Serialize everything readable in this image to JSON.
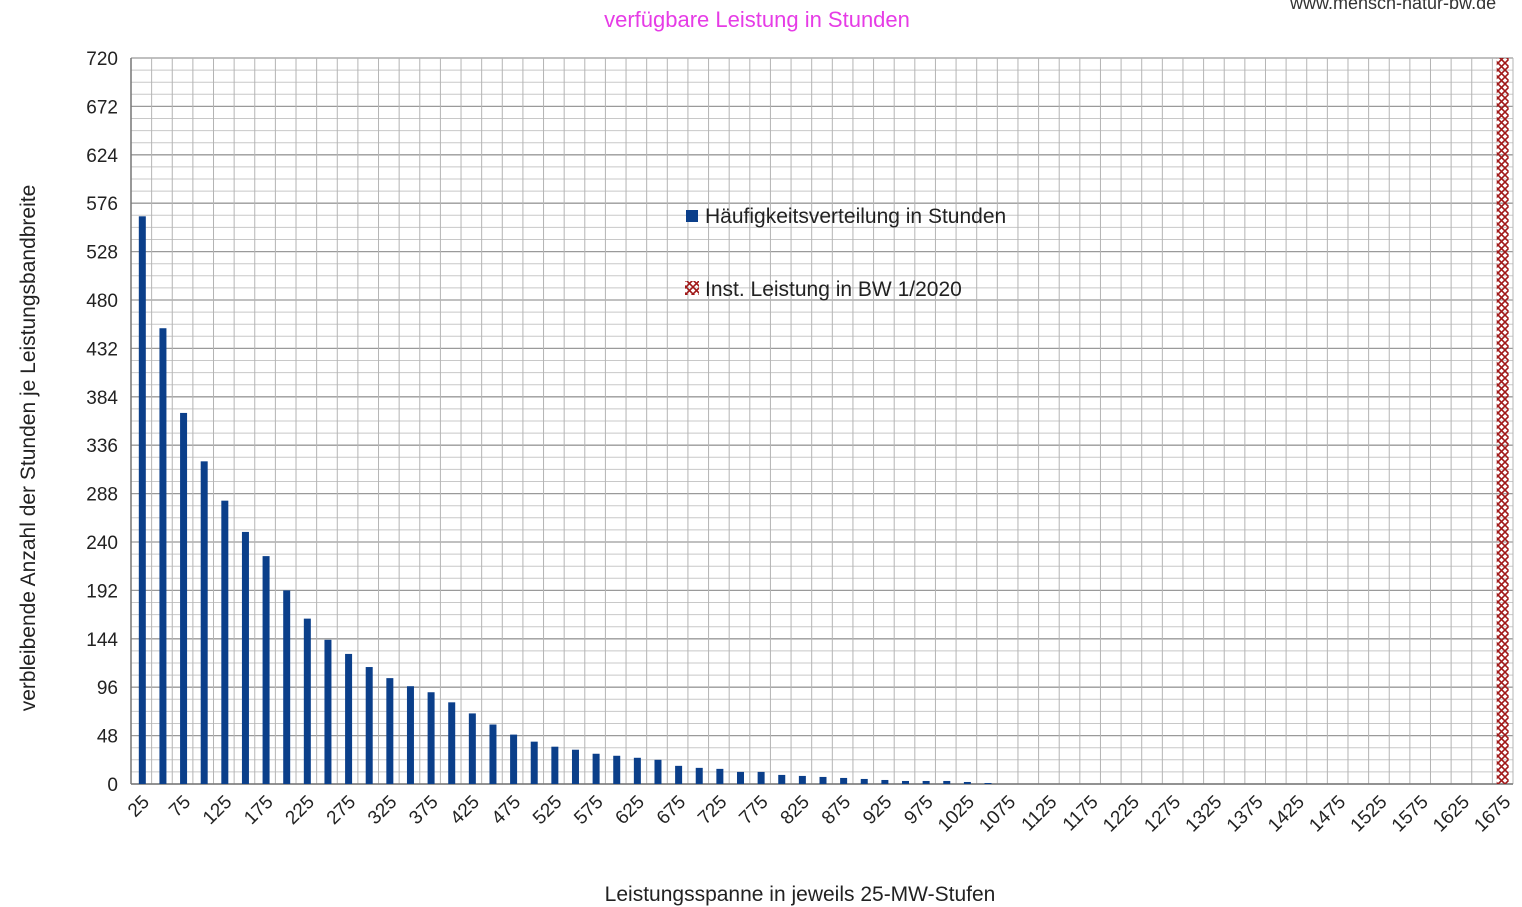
{
  "chart_data": {
    "type": "bar",
    "title": "verfügbare Leistung in Stunden",
    "watermark": "www.mensch-natur-bw.de",
    "xlabel": "Leistungsspanne in jeweils 25-MW-Stufen",
    "ylabel": "verbleibende Anzahl der Stunden je Leistungsbandbreite",
    "ylim": [
      0,
      720
    ],
    "yticks": [
      0,
      48,
      96,
      144,
      192,
      240,
      288,
      336,
      384,
      432,
      480,
      528,
      576,
      624,
      672,
      720
    ],
    "xlim": [
      12.5,
      1687.5
    ],
    "xstep": 25,
    "xticks": [
      25,
      75,
      125,
      175,
      225,
      275,
      325,
      375,
      425,
      475,
      525,
      575,
      625,
      675,
      725,
      775,
      825,
      875,
      925,
      975,
      1025,
      1075,
      1125,
      1175,
      1225,
      1275,
      1325,
      1375,
      1425,
      1475,
      1525,
      1575,
      1625,
      1675
    ],
    "grid": true,
    "legend_position": "top-center",
    "series": [
      {
        "name": "Häufigkeitsverteilung in Stunden",
        "color": "#0b3f8a",
        "x": [
          25,
          50,
          75,
          100,
          125,
          150,
          175,
          200,
          225,
          250,
          275,
          300,
          325,
          350,
          375,
          400,
          425,
          450,
          475,
          500,
          525,
          550,
          575,
          600,
          625,
          650,
          675,
          700,
          725,
          750,
          775,
          800,
          825,
          850,
          875,
          900,
          925,
          950,
          975,
          1000,
          1025,
          1050
        ],
        "values": [
          563,
          452,
          368,
          320,
          281,
          250,
          226,
          192,
          164,
          143,
          129,
          116,
          105,
          97,
          91,
          81,
          70,
          59,
          49,
          42,
          37,
          34,
          30,
          28,
          26,
          24,
          18,
          16,
          15,
          12,
          12,
          9,
          8,
          7,
          6,
          5,
          4,
          3,
          3,
          3,
          2,
          1
        ]
      },
      {
        "name": "Inst. Leistung in BW 1/2020",
        "color": "#a01818",
        "type": "vertical-hatched-bar",
        "x": [
          1675
        ],
        "values": [
          720
        ]
      }
    ]
  }
}
